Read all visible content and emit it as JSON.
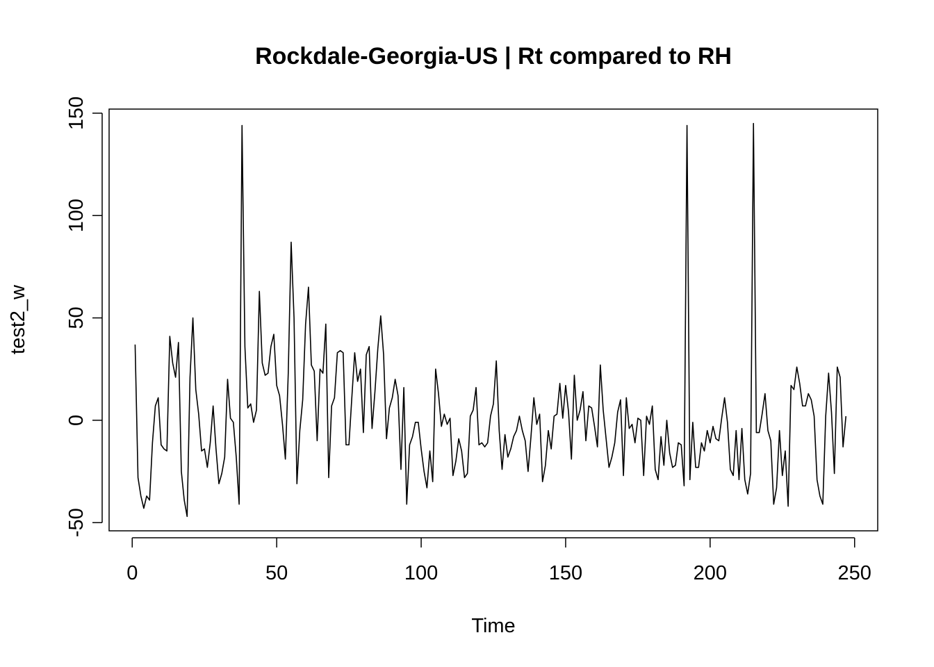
{
  "chart_data": {
    "type": "line",
    "title": "Rockdale-Georgia-US | Rt compared to RH",
    "xlabel": "Time",
    "ylabel": "test2_w",
    "xlim": [
      -8,
      258
    ],
    "ylim": [
      -54,
      152
    ],
    "xticks": [
      0,
      50,
      100,
      150,
      200,
      250
    ],
    "yticks": [
      -50,
      0,
      50,
      100,
      150
    ],
    "grid": false,
    "series": [
      {
        "color": "#000000",
        "x_start": 1,
        "values": [
          37,
          -28,
          -37,
          -43,
          -37,
          -39,
          -11,
          7,
          11,
          -12,
          -14,
          -15,
          41,
          28,
          21,
          38,
          -25,
          -39,
          -47,
          21,
          50,
          15,
          3,
          -15,
          -14,
          -23,
          -11,
          7,
          -14,
          -31,
          -26,
          -18,
          20,
          1,
          -1,
          -18,
          -41,
          144,
          36,
          6,
          8,
          -1,
          5,
          63,
          28,
          22,
          23,
          36,
          42,
          17,
          12,
          -2,
          -19,
          23,
          87,
          50,
          -31,
          -5,
          10,
          47,
          65,
          27,
          24,
          -10,
          25,
          23,
          47,
          -28,
          7,
          11,
          33,
          34,
          33,
          -12,
          -12,
          11,
          33,
          19,
          25,
          -6,
          32,
          36,
          -4,
          14,
          35,
          51,
          32,
          -9,
          6,
          11,
          20,
          12,
          -24,
          16,
          -41,
          -12,
          -8,
          -1,
          -1,
          -14,
          -25,
          -33,
          -15,
          -30,
          25,
          13,
          -3,
          3,
          -2,
          1,
          -27,
          -20,
          -9,
          -15,
          -28,
          -26,
          2,
          5,
          16,
          -12,
          -11,
          -13,
          -11,
          2,
          8,
          29,
          -5,
          -24,
          -7,
          -18,
          -14,
          -8,
          -5,
          2,
          -5,
          -10,
          -25,
          -8,
          11,
          -2,
          3,
          -30,
          -22,
          -5,
          -14,
          2,
          3,
          18,
          1,
          17,
          4,
          -19,
          22,
          0,
          5,
          14,
          -10,
          7,
          6,
          -3,
          -13,
          27,
          5,
          -9,
          -23,
          -18,
          -11,
          4,
          10,
          -27,
          11,
          -4,
          -2,
          -11,
          1,
          0,
          -27,
          2,
          -2,
          7,
          -24,
          -29,
          -8,
          -22,
          0,
          -16,
          -23,
          -22,
          -11,
          -12,
          -32,
          144,
          -29,
          -1,
          -23,
          -23,
          -11,
          -15,
          -5,
          -11,
          -3,
          -9,
          -10,
          1,
          11,
          -1,
          -24,
          -27,
          -5,
          -29,
          -4,
          -29,
          -36,
          -26,
          145,
          -6,
          -6,
          3,
          13,
          -5,
          -10,
          -41,
          -33,
          -5,
          -27,
          -15,
          -42,
          17,
          15,
          26,
          18,
          7,
          7,
          13,
          10,
          2,
          -29,
          -37,
          -41,
          2,
          23,
          4,
          -26,
          26,
          21,
          -13,
          2
        ]
      }
    ]
  }
}
